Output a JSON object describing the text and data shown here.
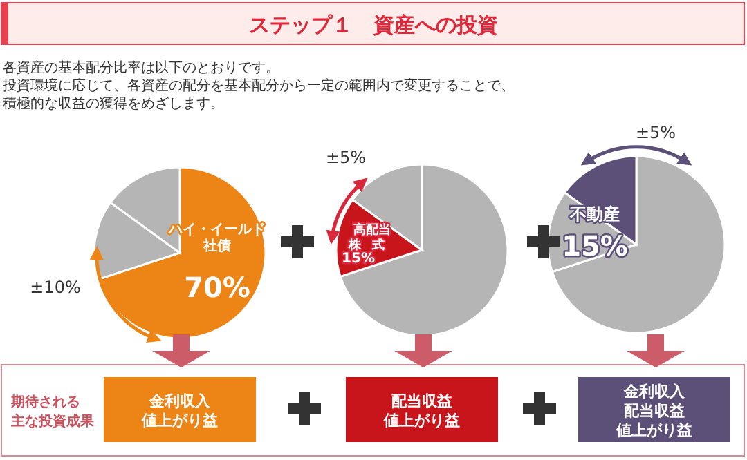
{
  "chart_data": [
    {
      "type": "other",
      "title": "ステップ１　資産への投資",
      "subtitle": "各資産の基本配分比率は以下のとおりです。投資環境に応じて、各資産の配分を基本配分から一定の範囲内で変更することで、積極的な収益の獲得をめざします。",
      "annotations": [
        "期待される主な投資成果"
      ]
    },
    {
      "type": "pie",
      "categories": [
        "ハイ・イールド社債",
        null,
        null
      ],
      "values": [
        70,
        15,
        15
      ],
      "colors": [
        "#ec8516",
        "#b5b5b5",
        "#b5b5b5"
      ],
      "value_labels": [
        "70%",
        null,
        null
      ],
      "annotations": [
        "±10%",
        "金利収入値上がり益"
      ]
    },
    {
      "type": "pie",
      "categories": [
        null,
        "高配当株式",
        null
      ],
      "values": [
        70,
        15,
        15
      ],
      "colors": [
        "#b5b5b5",
        "#c8151b",
        "#b5b5b5"
      ],
      "value_labels": [
        null,
        "15%",
        null
      ],
      "annotations": [
        "±5%",
        "配当収益値上がり益"
      ]
    },
    {
      "type": "pie",
      "categories": [
        null,
        null,
        "不動産"
      ],
      "values": [
        70,
        15,
        15
      ],
      "colors": [
        "#b5b5b5",
        "#b5b5b5",
        "#5c5079"
      ],
      "value_labels": [
        null,
        null,
        "15%"
      ],
      "annotations": [
        "±5%",
        "金利収入配当収益値上がり益"
      ]
    }
  ]
}
